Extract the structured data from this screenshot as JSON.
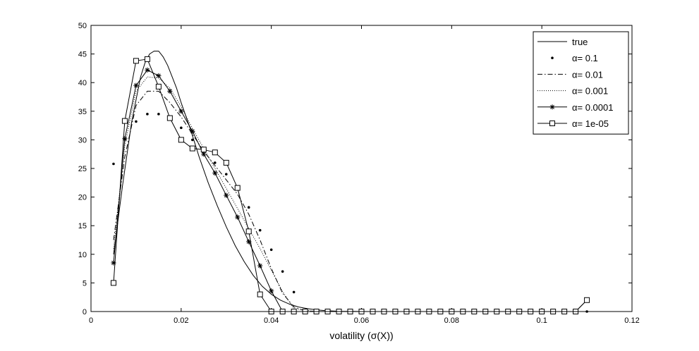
{
  "chart_data": {
    "type": "line",
    "title": "",
    "xlabel": "volatility (σ(X))",
    "ylabel": "",
    "xlim": [
      0,
      0.12
    ],
    "ylim": [
      0,
      50
    ],
    "xticks": [
      0,
      0.02,
      0.04,
      0.06,
      0.08,
      0.1,
      0.12
    ],
    "xtick_labels": [
      "0",
      "0.02",
      "0.04",
      "0.06",
      "0.08",
      "0.1",
      "0.12"
    ],
    "yticks": [
      0,
      5,
      10,
      15,
      20,
      25,
      30,
      35,
      40,
      45,
      50
    ],
    "ytick_labels": [
      "0",
      "5",
      "10",
      "15",
      "20",
      "25",
      "30",
      "35",
      "40",
      "45",
      "50"
    ],
    "grid": false,
    "legend_position": "top-right",
    "series": [
      {
        "name": "true",
        "style": "solid",
        "marker": "none",
        "x": [
          0.005,
          0.007,
          0.009,
          0.011,
          0.012,
          0.013,
          0.014,
          0.015,
          0.016,
          0.017,
          0.018,
          0.019,
          0.02,
          0.022,
          0.024,
          0.026,
          0.028,
          0.03,
          0.032,
          0.034,
          0.036,
          0.038,
          0.04,
          0.042,
          0.044,
          0.046,
          0.048,
          0.05,
          0.052,
          0.055,
          0.058,
          0.062,
          0.07,
          0.08,
          0.09,
          0.1,
          0.11
        ],
        "y": [
          10,
          22,
          33,
          41,
          43.5,
          45,
          45.5,
          45.5,
          44.5,
          43,
          41,
          39,
          36.5,
          32,
          27,
          22.5,
          18.5,
          14.8,
          11.5,
          8.7,
          6.3,
          4.4,
          3,
          2,
          1.3,
          0.8,
          0.5,
          0.3,
          0.15,
          0.05,
          0.02,
          0,
          0,
          0,
          0,
          0,
          0
        ]
      },
      {
        "name": "α= 0.1",
        "style": "none",
        "marker": "dot",
        "x": [
          0.005,
          0.0075,
          0.01,
          0.0125,
          0.015,
          0.0175,
          0.02,
          0.0225,
          0.025,
          0.0275,
          0.03,
          0.0325,
          0.035,
          0.0375,
          0.04,
          0.0425,
          0.045,
          0.0475,
          0.05,
          0.0525,
          0.055,
          0.0575,
          0.06,
          0.0625,
          0.065,
          0.0675,
          0.07,
          0.0725,
          0.075,
          0.0775,
          0.08,
          0.0825,
          0.085,
          0.0875,
          0.09,
          0.0925,
          0.095,
          0.0975,
          0.1,
          0.1025,
          0.105,
          0.1075,
          0.11
        ],
        "y": [
          25.8,
          30.1,
          33.2,
          34.5,
          34.5,
          33.8,
          32.1,
          30,
          28,
          26,
          24,
          21.5,
          18.2,
          14.2,
          10.8,
          7,
          3.4,
          0.2,
          0,
          0,
          0,
          0,
          0,
          0,
          0,
          0,
          0,
          0,
          0,
          0,
          0,
          0,
          0,
          0,
          0,
          0,
          0,
          0,
          0,
          0,
          0,
          0,
          0
        ]
      },
      {
        "name": "α= 0.01",
        "style": "dashdot",
        "marker": "none",
        "x": [
          0.005,
          0.0075,
          0.01,
          0.0125,
          0.015,
          0.0175,
          0.02,
          0.0225,
          0.025,
          0.0275,
          0.03,
          0.0325,
          0.035,
          0.0375,
          0.04,
          0.0425,
          0.045,
          0.0475,
          0.05,
          0.06,
          0.08,
          0.1,
          0.11
        ],
        "y": [
          12.5,
          27,
          36,
          38.5,
          38.5,
          36.5,
          34,
          31,
          28,
          25.5,
          23,
          20.5,
          17,
          12.5,
          7.5,
          3.2,
          0.8,
          0.1,
          0,
          0,
          0,
          0,
          0
        ]
      },
      {
        "name": "α= 0.001",
        "style": "dotted",
        "marker": "none",
        "x": [
          0.005,
          0.0075,
          0.01,
          0.0125,
          0.015,
          0.0175,
          0.02,
          0.0225,
          0.025,
          0.0275,
          0.03,
          0.0325,
          0.035,
          0.0375,
          0.04,
          0.0425,
          0.045,
          0.05,
          0.06,
          0.08,
          0.1,
          0.11
        ],
        "y": [
          11,
          29,
          38.5,
          41,
          40.8,
          39,
          35.8,
          32,
          28.5,
          25,
          21.5,
          18,
          14.5,
          11,
          7.2,
          3.5,
          0.5,
          0,
          0,
          0,
          0,
          0
        ]
      },
      {
        "name": "α= 0.0001",
        "style": "solid",
        "marker": "star",
        "x": [
          0.005,
          0.0075,
          0.01,
          0.0125,
          0.015,
          0.0175,
          0.02,
          0.0225,
          0.025,
          0.0275,
          0.03,
          0.0325,
          0.035,
          0.0375,
          0.04,
          0.0425,
          0.045,
          0.0475,
          0.05,
          0.0525,
          0.055,
          0.0575,
          0.06,
          0.0625,
          0.065,
          0.0675,
          0.07,
          0.0725,
          0.075,
          0.0775,
          0.08,
          0.0825,
          0.085,
          0.0875,
          0.09,
          0.0925,
          0.095,
          0.0975,
          0.1,
          0.1025,
          0.105,
          0.1075,
          0.11
        ],
        "y": [
          8.5,
          30.2,
          39.5,
          42.2,
          41.2,
          38.5,
          35,
          31.5,
          27.5,
          24.2,
          20.3,
          16.5,
          12.2,
          8,
          3.6,
          0,
          0,
          0,
          0,
          0,
          0,
          0,
          0,
          0,
          0,
          0,
          0,
          0,
          0,
          0,
          0,
          0,
          0,
          0,
          0,
          0,
          0,
          0,
          0,
          0,
          0,
          0,
          2
        ]
      },
      {
        "name": "α= 1e-05",
        "style": "solid",
        "marker": "square",
        "x": [
          0.005,
          0.0075,
          0.01,
          0.0125,
          0.015,
          0.0175,
          0.02,
          0.0225,
          0.025,
          0.0275,
          0.03,
          0.0325,
          0.035,
          0.0375,
          0.04,
          0.0425,
          0.045,
          0.0475,
          0.05,
          0.0525,
          0.055,
          0.0575,
          0.06,
          0.0625,
          0.065,
          0.0675,
          0.07,
          0.0725,
          0.075,
          0.0775,
          0.08,
          0.0825,
          0.085,
          0.0875,
          0.09,
          0.0925,
          0.095,
          0.0975,
          0.1,
          0.1025,
          0.105,
          0.1075,
          0.11
        ],
        "y": [
          5,
          33.3,
          43.8,
          44.1,
          39.3,
          33.8,
          30,
          28.5,
          28.3,
          27.8,
          26,
          21.6,
          14,
          3,
          0,
          0,
          0,
          0,
          0,
          0,
          0,
          0,
          0,
          0,
          0,
          0,
          0,
          0,
          0,
          0,
          0,
          0,
          0,
          0,
          0,
          0,
          0,
          0,
          0,
          0,
          0,
          0,
          2
        ]
      }
    ]
  }
}
